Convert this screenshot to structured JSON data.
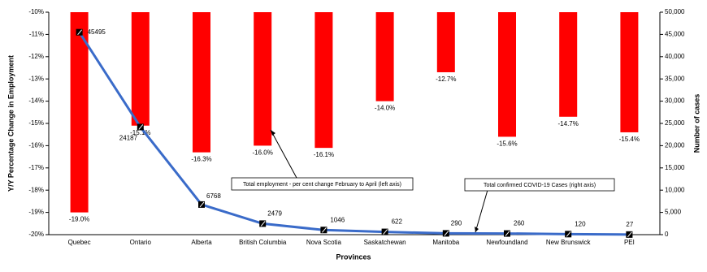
{
  "chart_data": {
    "type": "bar_line",
    "categories": [
      "Quebec",
      "Ontario",
      "Alberta",
      "British Columbia",
      "Nova Scotia",
      "Saskatchewan",
      "Manitoba",
      "Newfoundland",
      "New Brunswick",
      "PEI"
    ],
    "series": [
      {
        "name": "Total employment - per cent change February to April (left axis)",
        "color": "#ff0000",
        "type": "bar",
        "values": [
          -19.0,
          -15.1,
          -16.3,
          -16.0,
          -16.1,
          -14.0,
          -12.7,
          -15.6,
          -14.7,
          -15.4
        ],
        "value_labels": [
          "-19.0%",
          "-15.1%",
          "-16.3%",
          "-16.0%",
          "-16.1%",
          "-14.0%",
          "-12.7%",
          "-15.6%",
          "-14.7%",
          "-15.4%"
        ]
      },
      {
        "name": "Total confirmed COVID-19 Cases (right axis)",
        "color": "#3a6bc9",
        "type": "line",
        "axis": "y2",
        "values": [
          45495,
          24187,
          6768,
          2479,
          1046,
          622,
          290,
          260,
          120,
          27
        ]
      }
    ],
    "x_label": "Provinces",
    "y_label": "Y/Y Percentage Change in Employment",
    "y2_label": "Number of cases",
    "ylim": [
      -20,
      -10
    ],
    "yticks": [
      {
        "value": -10,
        "label": "-10%"
      },
      {
        "value": -11,
        "label": "-11%"
      },
      {
        "value": -12,
        "label": "-12%"
      },
      {
        "value": -13,
        "label": "-13%"
      },
      {
        "value": -14,
        "label": "-14%"
      },
      {
        "value": -15,
        "label": "-15%"
      },
      {
        "value": -16,
        "label": "-16%"
      },
      {
        "value": -17,
        "label": "-17%"
      },
      {
        "value": -18,
        "label": "-18%"
      },
      {
        "value": -19,
        "label": "-19%"
      },
      {
        "value": -20,
        "label": "-20%"
      }
    ],
    "y2lim": [
      0,
      50000
    ],
    "y2ticks": [
      0,
      {
        "value": 5000,
        "label": "5,000"
      },
      {
        "value": 10000,
        "label": "10,000"
      },
      {
        "value": 15000,
        "label": "15,000"
      },
      {
        "value": 20000,
        "label": "20,000"
      },
      {
        "value": 25000,
        "label": "25,000"
      },
      {
        "value": 30000,
        "label": "30,000"
      },
      {
        "value": 35000,
        "label": "35,000"
      },
      {
        "value": 40000,
        "label": "40,000"
      },
      {
        "value": 45000,
        "label": "45,000"
      },
      {
        "value": 50000,
        "label": "50,000"
      }
    ]
  }
}
